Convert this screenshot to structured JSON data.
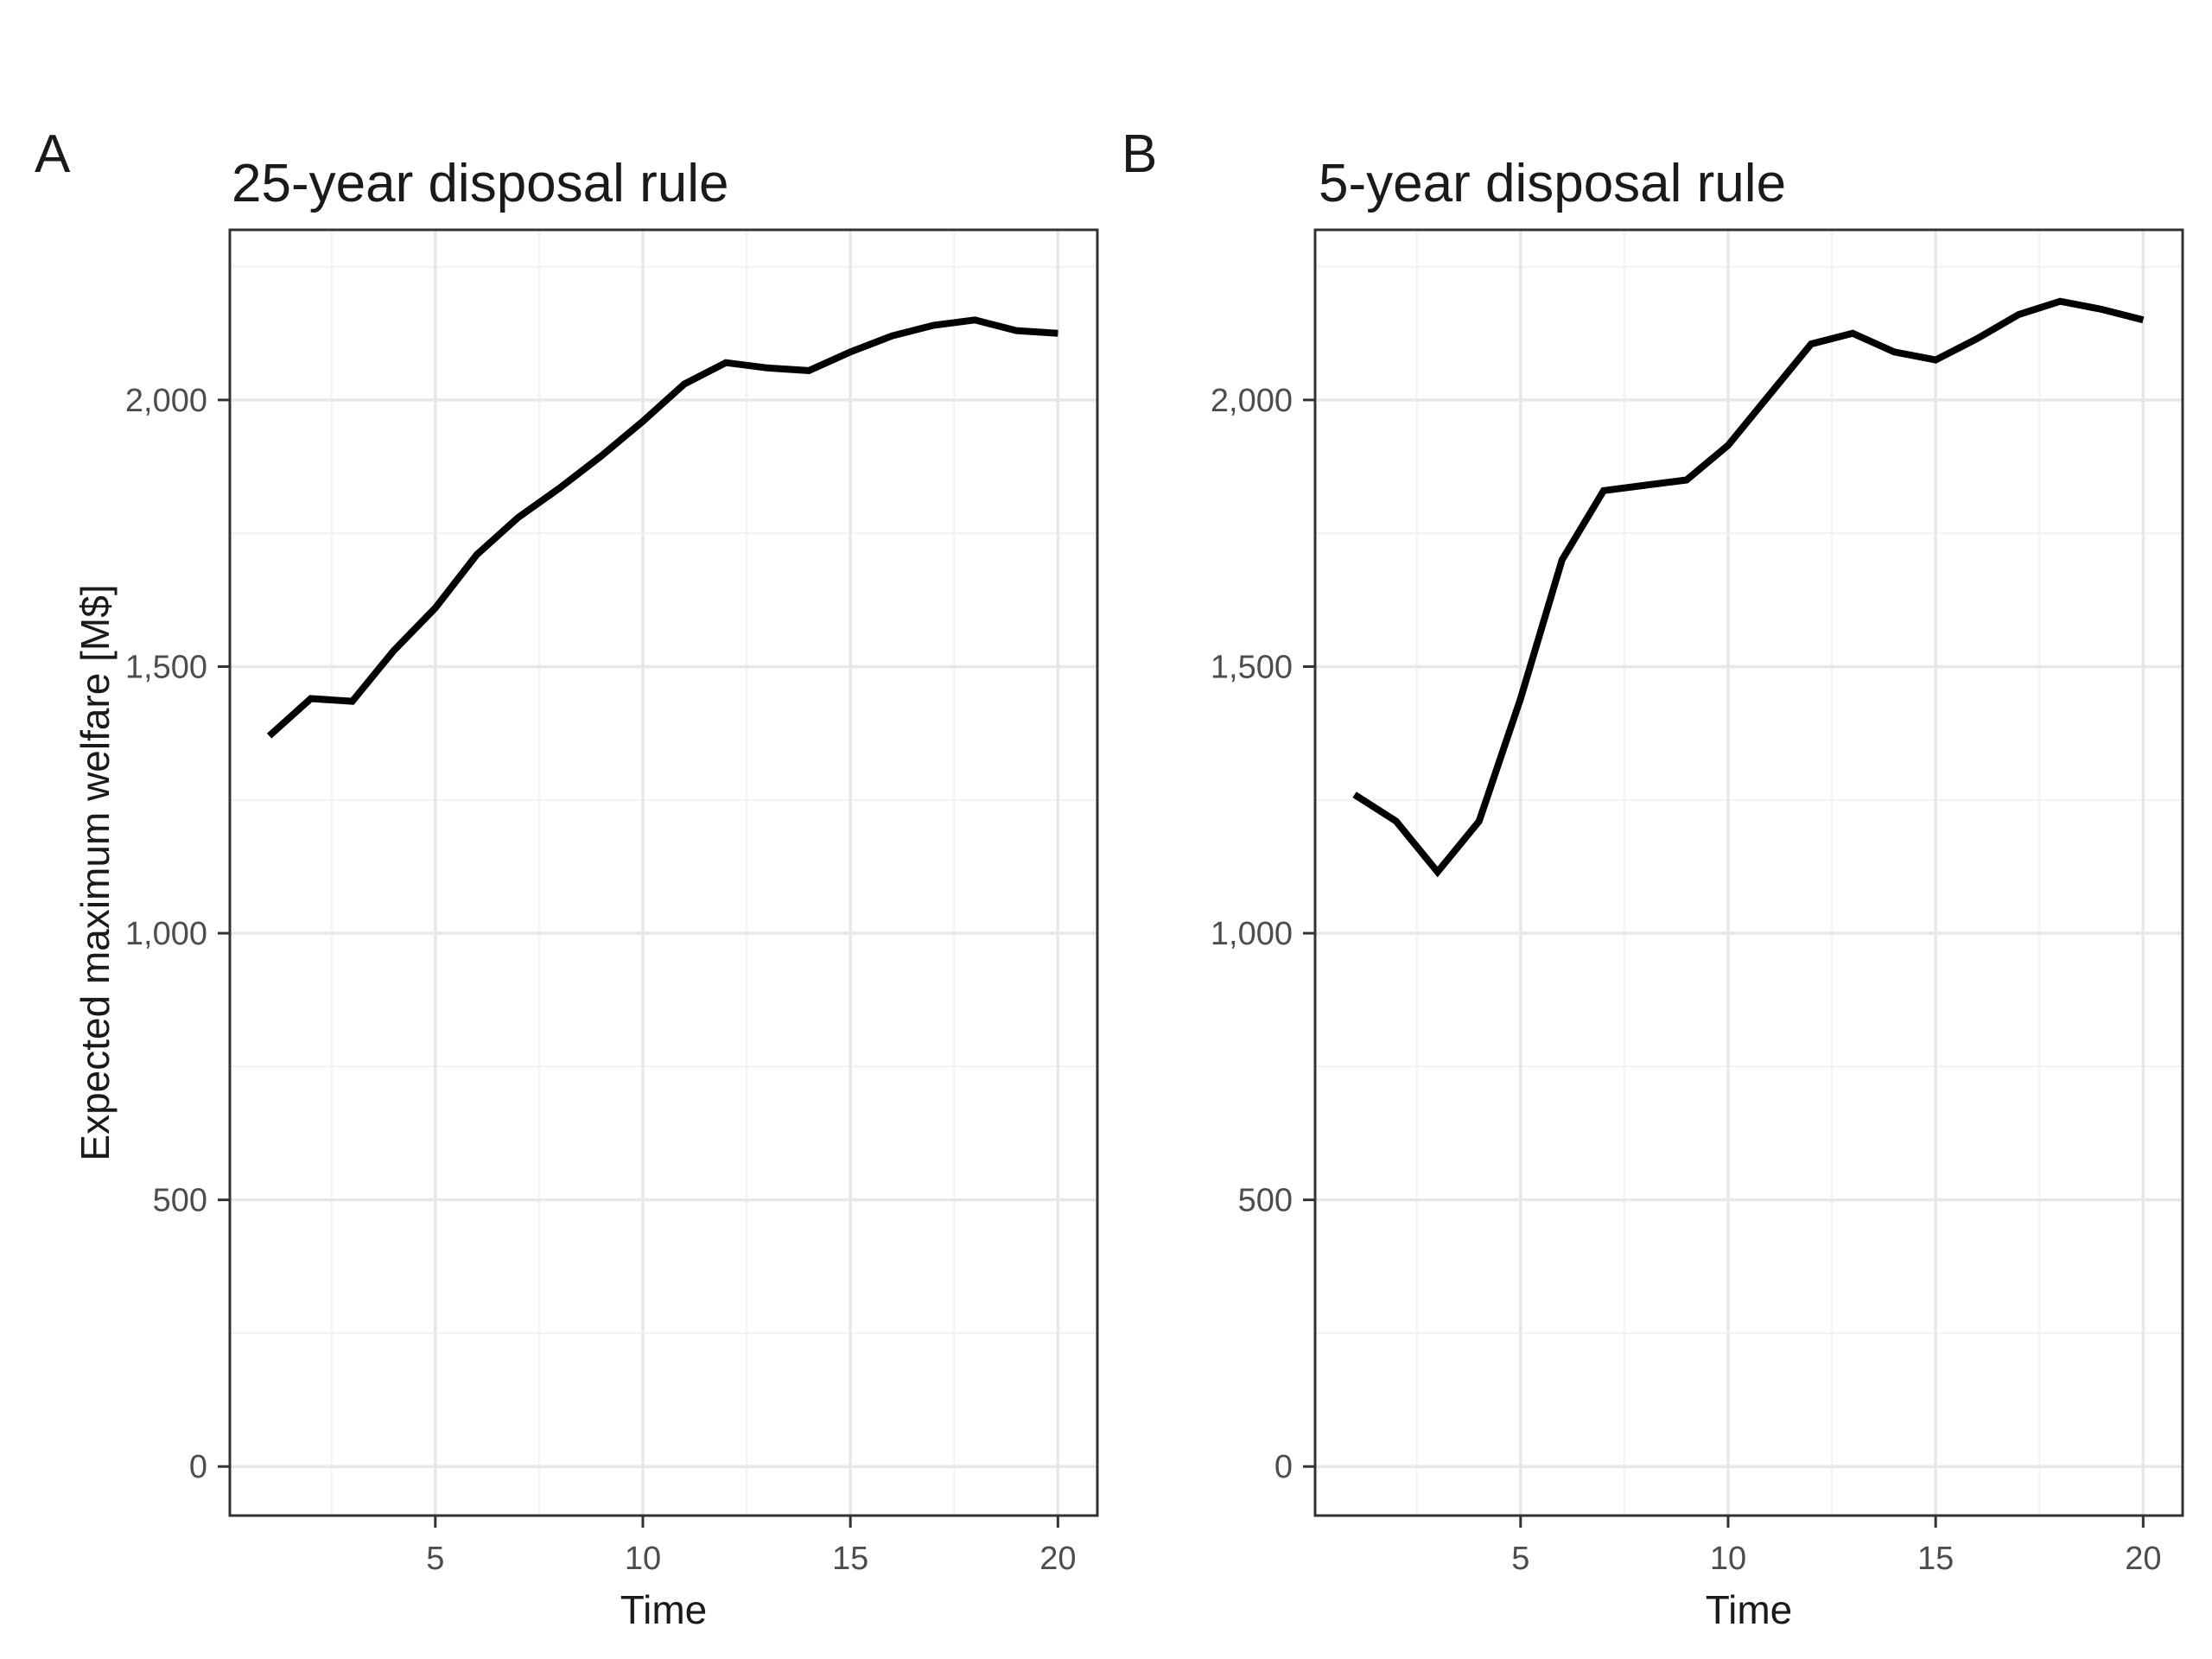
{
  "figure": {
    "tags": {
      "panel_a": "A",
      "panel_b": "B"
    }
  },
  "axes": {
    "y_title": "Expected maximum welfare [M$]",
    "x_title": "Time"
  },
  "colors": {
    "background": "#ffffff",
    "panel_border": "#333333",
    "grid_major": "#e8e8e8",
    "grid_minor": "#f2f2f2",
    "tick_mark": "#333333",
    "tick_label": "#4d4d4d",
    "text": "#1a1a1a",
    "series_line": "#000000"
  },
  "chart_data": [
    {
      "type": "line",
      "title": "25-year disposal rule",
      "xlabel": "Time",
      "ylabel": "Expected maximum welfare [M$]",
      "legend": "none",
      "grid": true,
      "x": [
        1,
        2,
        3,
        4,
        5,
        6,
        7,
        8,
        9,
        10,
        11,
        12,
        13,
        14,
        15,
        16,
        17,
        18,
        19,
        20
      ],
      "values": [
        1370,
        1440,
        1435,
        1530,
        1610,
        1710,
        1780,
        1835,
        1895,
        1960,
        2030,
        2070,
        2060,
        2055,
        2090,
        2120,
        2140,
        2150,
        2130,
        2125
      ],
      "xlim": [
        0.05,
        20.95
      ],
      "ylim": [
        -92,
        2319
      ],
      "x_ticks": [
        5,
        10,
        15,
        20
      ],
      "x_tick_labels": [
        "5",
        "10",
        "15",
        "20"
      ],
      "y_ticks": [
        0,
        500,
        1000,
        1500,
        2000
      ],
      "y_tick_labels": [
        "0",
        "500",
        "1,000",
        "1,500",
        "2,000"
      ],
      "x_minor_gridlines": [
        2.5,
        7.5,
        12.5,
        17.5
      ],
      "y_minor_gridlines": [
        250,
        750,
        1250,
        1750,
        2250
      ],
      "line_color": "#000000"
    },
    {
      "type": "line",
      "title": "5-year disposal rule",
      "xlabel": "Time",
      "ylabel": "Expected maximum welfare [M$]",
      "legend": "none",
      "grid": true,
      "x": [
        1,
        2,
        3,
        4,
        5,
        6,
        7,
        8,
        9,
        10,
        11,
        12,
        13,
        14,
        15,
        16,
        17,
        18,
        19,
        20
      ],
      "values": [
        1260,
        1210,
        1115,
        1210,
        1440,
        1700,
        1830,
        1840,
        1850,
        1915,
        2010,
        2105,
        2125,
        2090,
        2075,
        2115,
        2160,
        2185,
        2170,
        2150
      ],
      "xlim": [
        0.05,
        20.95
      ],
      "ylim": [
        -92,
        2319
      ],
      "x_ticks": [
        5,
        10,
        15,
        20
      ],
      "x_tick_labels": [
        "5",
        "10",
        "15",
        "20"
      ],
      "y_ticks": [
        0,
        500,
        1000,
        1500,
        2000
      ],
      "y_tick_labels": [
        "0",
        "500",
        "1,000",
        "1,500",
        "2,000"
      ],
      "x_minor_gridlines": [
        2.5,
        7.5,
        12.5,
        17.5
      ],
      "y_minor_gridlines": [
        250,
        750,
        1250,
        1750,
        2250
      ],
      "line_color": "#000000"
    }
  ]
}
